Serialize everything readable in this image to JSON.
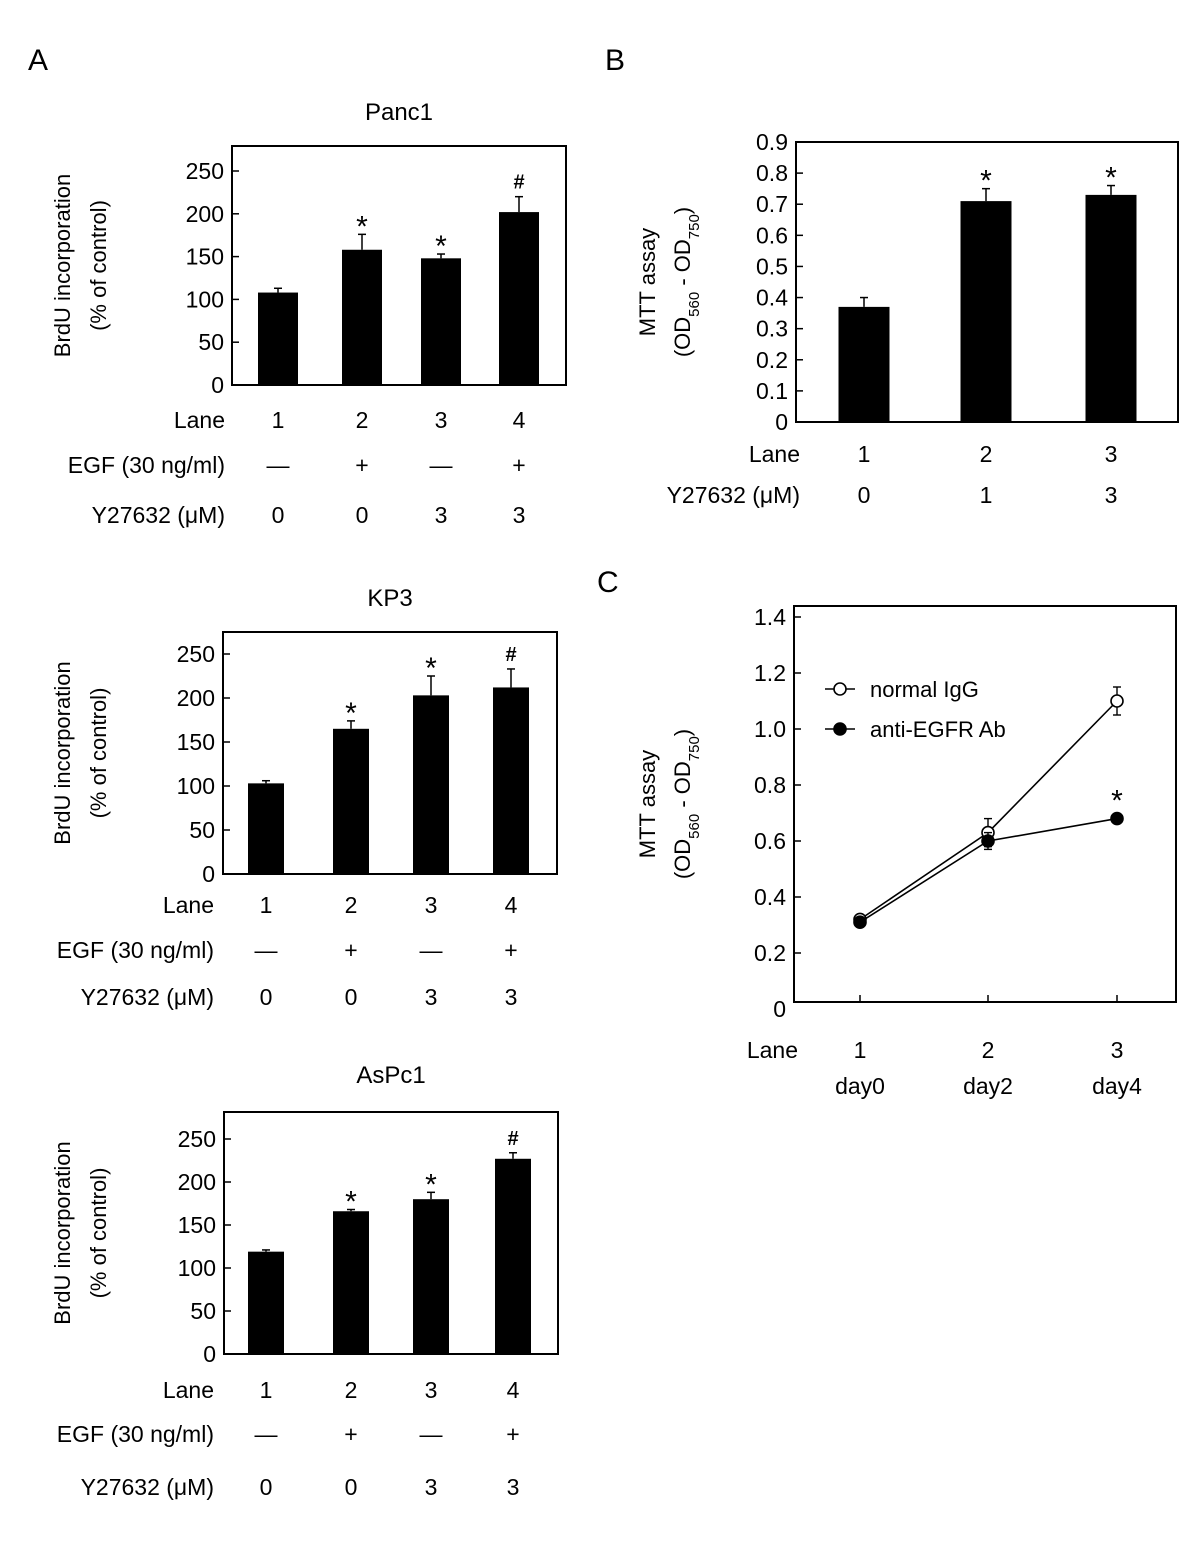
{
  "figure": {
    "panel_labels": [
      "A",
      "B",
      "C"
    ]
  },
  "chart_data": [
    {
      "id": "A-panc1",
      "panel": "A",
      "type": "bar",
      "title": "Panc1",
      "ylabel_line1": "BrdU incorporation",
      "ylabel_line2": "(% of control)",
      "ylim": [
        0,
        275
      ],
      "yticks": [
        0,
        50,
        100,
        150,
        200,
        250
      ],
      "categories": [
        "1",
        "2",
        "3",
        "4"
      ],
      "values": [
        108,
        158,
        148,
        202
      ],
      "errors": [
        5,
        18,
        5,
        18
      ],
      "annotations": [
        "",
        "*",
        "*",
        "#"
      ],
      "row_labels": [
        "Lane",
        "EGF (30 ng/ml)",
        "Y27632 (μM)"
      ],
      "rows": [
        [
          "1",
          "2",
          "3",
          "4"
        ],
        [
          "—",
          "+",
          "—",
          "+"
        ],
        [
          "0",
          "0",
          "3",
          "3"
        ]
      ]
    },
    {
      "id": "A-kp3",
      "panel": "A",
      "type": "bar",
      "title": "KP3",
      "ylabel_line1": "BrdU incorporation",
      "ylabel_line2": "(% of control)",
      "ylim": [
        0,
        275
      ],
      "yticks": [
        0,
        50,
        100,
        150,
        200,
        250
      ],
      "categories": [
        "1",
        "2",
        "3",
        "4"
      ],
      "values": [
        103,
        165,
        203,
        212
      ],
      "errors": [
        3,
        9,
        22,
        21
      ],
      "annotations": [
        "",
        "*",
        "*",
        "#"
      ],
      "row_labels": [
        "Lane",
        "EGF (30 ng/ml)",
        "Y27632 (μM)"
      ],
      "rows": [
        [
          "1",
          "2",
          "3",
          "4"
        ],
        [
          "—",
          "+",
          "—",
          "+"
        ],
        [
          "0",
          "0",
          "3",
          "3"
        ]
      ]
    },
    {
      "id": "A-aspc1",
      "panel": "A",
      "type": "bar",
      "title": "AsPc1",
      "ylabel_line1": "BrdU incorporation",
      "ylabel_line2": "(% of control)",
      "ylim": [
        0,
        275
      ],
      "yticks": [
        0,
        50,
        100,
        150,
        200,
        250
      ],
      "categories": [
        "1",
        "2",
        "3",
        "4"
      ],
      "values": [
        119,
        166,
        180,
        227
      ],
      "errors": [
        2,
        2,
        8,
        7
      ],
      "annotations": [
        "",
        "*",
        "*",
        "#"
      ],
      "row_labels": [
        "Lane",
        "EGF (30 ng/ml)",
        "Y27632 (μM)"
      ],
      "rows": [
        [
          "1",
          "2",
          "3",
          "4"
        ],
        [
          "—",
          "+",
          "—",
          "+"
        ],
        [
          "0",
          "0",
          "3",
          "3"
        ]
      ]
    },
    {
      "id": "B-mtt",
      "panel": "B",
      "type": "bar",
      "title": "",
      "ylabel_line1": "MTT assay",
      "ylabel_line2": "(OD560 - OD750)",
      "ylim": [
        0,
        0.9
      ],
      "yticks": [
        0,
        0.1,
        0.2,
        0.3,
        0.4,
        0.5,
        0.6,
        0.7,
        0.8,
        0.9
      ],
      "categories": [
        "1",
        "2",
        "3"
      ],
      "values": [
        0.37,
        0.71,
        0.73
      ],
      "errors": [
        0.03,
        0.04,
        0.03
      ],
      "annotations": [
        "",
        "*",
        "*"
      ],
      "row_labels": [
        "Lane",
        "Y27632 (μM)"
      ],
      "rows": [
        [
          "1",
          "2",
          "3"
        ],
        [
          "0",
          "1",
          "3"
        ]
      ]
    },
    {
      "id": "C-mtt-time",
      "panel": "C",
      "type": "line",
      "title": "",
      "ylabel_line1": "MTT assay",
      "ylabel_line2": "(OD560 - OD750)",
      "ylim": [
        0,
        1.4
      ],
      "yticks": [
        0,
        0.2,
        0.4,
        0.6,
        0.8,
        1.0,
        1.2,
        1.4
      ],
      "ytick_labels": [
        "0",
        "0.2",
        "0.4",
        "0.6",
        "0.8",
        "1.0",
        "1.2",
        "1.4"
      ],
      "categories": [
        "1",
        "2",
        "3"
      ],
      "x": [
        "day0",
        "day2",
        "day4"
      ],
      "series": [
        {
          "name": "normal IgG",
          "marker": "open-circle",
          "values": [
            0.32,
            0.63,
            1.1
          ],
          "errors": [
            0.01,
            0.05,
            0.05
          ]
        },
        {
          "name": "anti-EGFR Ab",
          "marker": "filled-circle",
          "values": [
            0.31,
            0.6,
            0.68
          ],
          "errors": [
            0.01,
            0.03,
            0.01
          ]
        }
      ],
      "annotations": [
        {
          "series": "anti-EGFR Ab",
          "index": 2,
          "text": "*"
        }
      ],
      "legend_position": "top-left",
      "row_labels": [
        "Lane",
        ""
      ],
      "rows": [
        [
          "1",
          "2",
          "3"
        ],
        [
          "day0",
          "day2",
          "day4"
        ]
      ]
    }
  ]
}
